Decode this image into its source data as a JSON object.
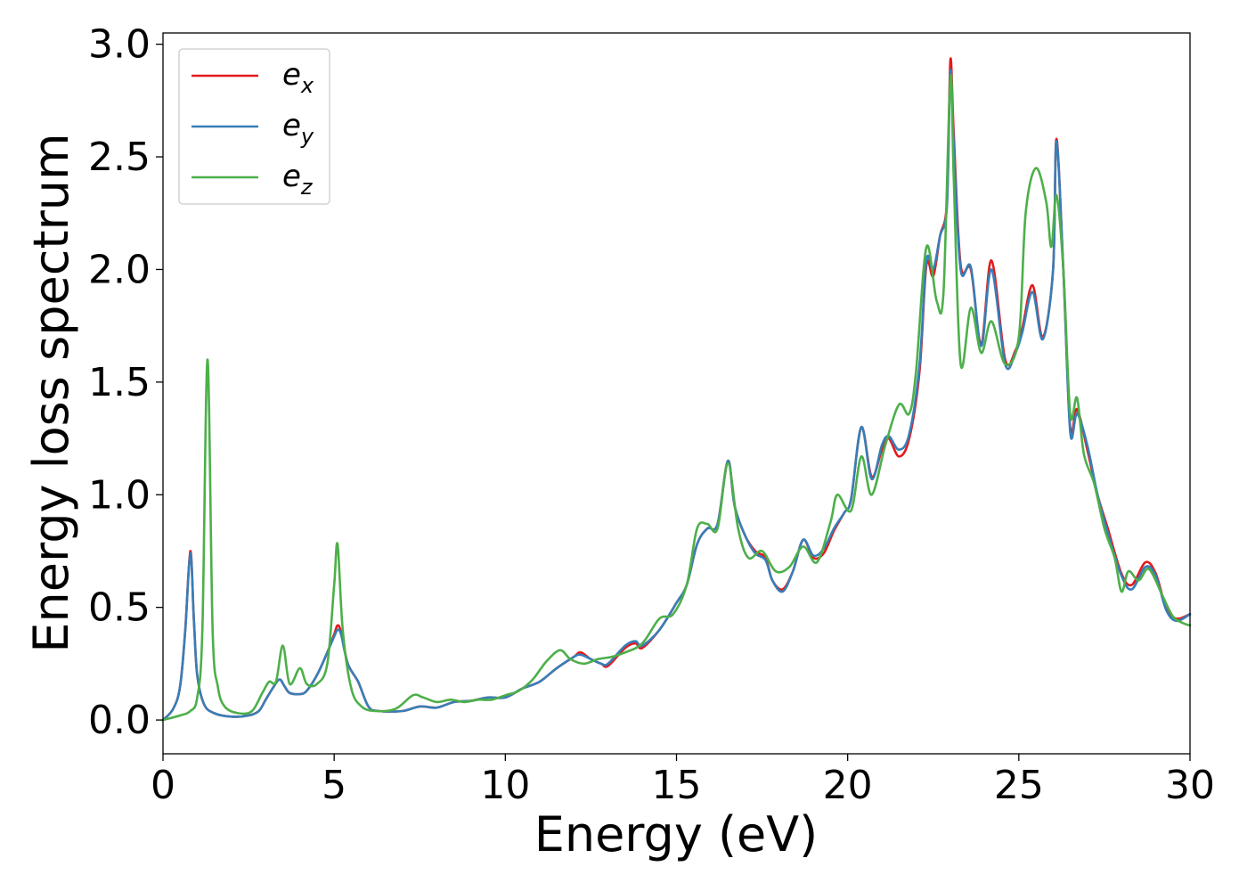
{
  "chart_data": {
    "type": "line",
    "title": "",
    "xlabel": "Energy (eV)",
    "ylabel": "Energy loss spectrum",
    "xlim": [
      0,
      30
    ],
    "ylim": [
      -0.15,
      3.05
    ],
    "xticks": [
      0,
      5,
      10,
      15,
      20,
      25,
      30
    ],
    "xtick_labels": [
      "0",
      "5",
      "10",
      "15",
      "20",
      "25",
      "30"
    ],
    "yticks": [
      0.0,
      0.5,
      1.0,
      1.5,
      2.0,
      2.5,
      3.0
    ],
    "ytick_labels": [
      "0.0",
      "0.5",
      "1.0",
      "1.5",
      "2.0",
      "2.5",
      "3.0"
    ],
    "grid": false,
    "legend_position": "upper-left",
    "series": [
      {
        "name": "e_x",
        "legend_base": "e",
        "legend_sub": "x",
        "color": "#e41a1c",
        "points": [
          [
            0,
            0
          ],
          [
            0.3,
            0.05
          ],
          [
            0.5,
            0.15
          ],
          [
            0.65,
            0.4
          ],
          [
            0.8,
            0.75
          ],
          [
            0.9,
            0.45
          ],
          [
            1.0,
            0.2
          ],
          [
            1.2,
            0.07
          ],
          [
            1.5,
            0.03
          ],
          [
            2.0,
            0.015
          ],
          [
            2.5,
            0.02
          ],
          [
            2.8,
            0.04
          ],
          [
            3.0,
            0.09
          ],
          [
            3.2,
            0.14
          ],
          [
            3.4,
            0.18
          ],
          [
            3.55,
            0.15
          ],
          [
            3.7,
            0.12
          ],
          [
            4.0,
            0.115
          ],
          [
            4.2,
            0.13
          ],
          [
            4.5,
            0.2
          ],
          [
            4.8,
            0.3
          ],
          [
            5.0,
            0.38
          ],
          [
            5.1,
            0.42
          ],
          [
            5.2,
            0.39
          ],
          [
            5.4,
            0.25
          ],
          [
            5.7,
            0.17
          ],
          [
            6.0,
            0.06
          ],
          [
            6.3,
            0.04
          ],
          [
            7.0,
            0.04
          ],
          [
            7.5,
            0.06
          ],
          [
            8.0,
            0.055
          ],
          [
            8.5,
            0.08
          ],
          [
            9.0,
            0.085
          ],
          [
            9.5,
            0.1
          ],
          [
            10.0,
            0.1
          ],
          [
            10.5,
            0.14
          ],
          [
            11.0,
            0.17
          ],
          [
            11.5,
            0.23
          ],
          [
            12.0,
            0.28
          ],
          [
            12.2,
            0.3
          ],
          [
            12.5,
            0.27
          ],
          [
            12.8,
            0.25
          ],
          [
            13.0,
            0.24
          ],
          [
            13.5,
            0.32
          ],
          [
            13.8,
            0.34
          ],
          [
            14.0,
            0.32
          ],
          [
            14.5,
            0.4
          ],
          [
            15.0,
            0.52
          ],
          [
            15.3,
            0.6
          ],
          [
            15.6,
            0.78
          ],
          [
            15.9,
            0.85
          ],
          [
            16.2,
            0.87
          ],
          [
            16.5,
            1.15
          ],
          [
            16.7,
            0.95
          ],
          [
            17.0,
            0.82
          ],
          [
            17.3,
            0.75
          ],
          [
            17.6,
            0.72
          ],
          [
            17.8,
            0.62
          ],
          [
            18.1,
            0.58
          ],
          [
            18.4,
            0.66
          ],
          [
            18.7,
            0.8
          ],
          [
            19.0,
            0.72
          ],
          [
            19.3,
            0.74
          ],
          [
            19.6,
            0.84
          ],
          [
            19.9,
            0.92
          ],
          [
            20.1,
            0.98
          ],
          [
            20.4,
            1.3
          ],
          [
            20.7,
            1.08
          ],
          [
            21.0,
            1.2
          ],
          [
            21.2,
            1.25
          ],
          [
            21.5,
            1.17
          ],
          [
            21.8,
            1.25
          ],
          [
            22.1,
            1.55
          ],
          [
            22.3,
            2.02
          ],
          [
            22.5,
            1.97
          ],
          [
            22.7,
            2.15
          ],
          [
            22.9,
            2.3
          ],
          [
            23.0,
            2.93
          ],
          [
            23.1,
            2.6
          ],
          [
            23.3,
            2.02
          ],
          [
            23.6,
            2.0
          ],
          [
            23.9,
            1.67
          ],
          [
            24.2,
            2.04
          ],
          [
            24.6,
            1.6
          ],
          [
            24.9,
            1.64
          ],
          [
            25.1,
            1.74
          ],
          [
            25.4,
            1.93
          ],
          [
            25.7,
            1.7
          ],
          [
            26.0,
            2.0
          ],
          [
            26.1,
            2.58
          ],
          [
            26.3,
            2.0
          ],
          [
            26.5,
            1.3
          ],
          [
            26.7,
            1.38
          ],
          [
            27.0,
            1.2
          ],
          [
            27.3,
            1.0
          ],
          [
            27.6,
            0.85
          ],
          [
            28.0,
            0.65
          ],
          [
            28.3,
            0.6
          ],
          [
            28.7,
            0.7
          ],
          [
            29.0,
            0.65
          ],
          [
            29.3,
            0.5
          ],
          [
            29.6,
            0.45
          ],
          [
            30.0,
            0.47
          ]
        ]
      },
      {
        "name": "e_y",
        "legend_base": "e",
        "legend_sub": "y",
        "color": "#377eb8",
        "points": [
          [
            0,
            0
          ],
          [
            0.3,
            0.05
          ],
          [
            0.5,
            0.15
          ],
          [
            0.65,
            0.4
          ],
          [
            0.8,
            0.74
          ],
          [
            0.9,
            0.45
          ],
          [
            1.0,
            0.2
          ],
          [
            1.2,
            0.07
          ],
          [
            1.5,
            0.03
          ],
          [
            2.0,
            0.015
          ],
          [
            2.5,
            0.02
          ],
          [
            2.8,
            0.04
          ],
          [
            3.0,
            0.09
          ],
          [
            3.2,
            0.14
          ],
          [
            3.4,
            0.18
          ],
          [
            3.55,
            0.15
          ],
          [
            3.7,
            0.12
          ],
          [
            4.0,
            0.115
          ],
          [
            4.2,
            0.13
          ],
          [
            4.5,
            0.2
          ],
          [
            4.8,
            0.3
          ],
          [
            5.0,
            0.37
          ],
          [
            5.1,
            0.4
          ],
          [
            5.2,
            0.38
          ],
          [
            5.4,
            0.25
          ],
          [
            5.7,
            0.17
          ],
          [
            6.0,
            0.06
          ],
          [
            6.3,
            0.04
          ],
          [
            7.0,
            0.04
          ],
          [
            7.5,
            0.06
          ],
          [
            8.0,
            0.055
          ],
          [
            8.5,
            0.08
          ],
          [
            9.0,
            0.085
          ],
          [
            9.5,
            0.1
          ],
          [
            10.0,
            0.1
          ],
          [
            10.5,
            0.14
          ],
          [
            11.0,
            0.17
          ],
          [
            11.5,
            0.23
          ],
          [
            12.0,
            0.28
          ],
          [
            12.2,
            0.29
          ],
          [
            12.5,
            0.27
          ],
          [
            12.8,
            0.25
          ],
          [
            13.0,
            0.25
          ],
          [
            13.5,
            0.33
          ],
          [
            13.8,
            0.35
          ],
          [
            14.0,
            0.33
          ],
          [
            14.5,
            0.4
          ],
          [
            15.0,
            0.52
          ],
          [
            15.3,
            0.6
          ],
          [
            15.6,
            0.78
          ],
          [
            15.9,
            0.85
          ],
          [
            16.2,
            0.87
          ],
          [
            16.5,
            1.15
          ],
          [
            16.7,
            0.95
          ],
          [
            17.0,
            0.82
          ],
          [
            17.3,
            0.74
          ],
          [
            17.6,
            0.71
          ],
          [
            17.8,
            0.62
          ],
          [
            18.1,
            0.57
          ],
          [
            18.4,
            0.66
          ],
          [
            18.7,
            0.8
          ],
          [
            19.0,
            0.73
          ],
          [
            19.3,
            0.76
          ],
          [
            19.6,
            0.85
          ],
          [
            19.9,
            0.92
          ],
          [
            20.1,
            0.98
          ],
          [
            20.4,
            1.3
          ],
          [
            20.7,
            1.07
          ],
          [
            21.0,
            1.22
          ],
          [
            21.2,
            1.26
          ],
          [
            21.5,
            1.2
          ],
          [
            21.8,
            1.27
          ],
          [
            22.1,
            1.58
          ],
          [
            22.3,
            2.04
          ],
          [
            22.5,
            2.0
          ],
          [
            22.7,
            2.15
          ],
          [
            22.9,
            2.28
          ],
          [
            23.0,
            2.88
          ],
          [
            23.1,
            2.55
          ],
          [
            23.3,
            2.0
          ],
          [
            23.6,
            2.01
          ],
          [
            23.9,
            1.66
          ],
          [
            24.2,
            2.0
          ],
          [
            24.6,
            1.58
          ],
          [
            24.9,
            1.63
          ],
          [
            25.1,
            1.72
          ],
          [
            25.4,
            1.9
          ],
          [
            25.7,
            1.69
          ],
          [
            26.0,
            2.0
          ],
          [
            26.1,
            2.57
          ],
          [
            26.3,
            2.0
          ],
          [
            26.5,
            1.28
          ],
          [
            26.7,
            1.36
          ],
          [
            27.0,
            1.22
          ],
          [
            27.3,
            1.0
          ],
          [
            27.6,
            0.83
          ],
          [
            28.0,
            0.64
          ],
          [
            28.3,
            0.58
          ],
          [
            28.7,
            0.68
          ],
          [
            29.0,
            0.64
          ],
          [
            29.3,
            0.49
          ],
          [
            29.6,
            0.44
          ],
          [
            30.0,
            0.47
          ]
        ]
      },
      {
        "name": "e_z",
        "legend_base": "e",
        "legend_sub": "z",
        "color": "#4daf4a",
        "points": [
          [
            0,
            0
          ],
          [
            0.5,
            0.02
          ],
          [
            0.8,
            0.04
          ],
          [
            1.0,
            0.1
          ],
          [
            1.15,
            0.4
          ],
          [
            1.3,
            1.6
          ],
          [
            1.45,
            0.4
          ],
          [
            1.6,
            0.15
          ],
          [
            1.8,
            0.06
          ],
          [
            2.2,
            0.03
          ],
          [
            2.6,
            0.04
          ],
          [
            2.9,
            0.12
          ],
          [
            3.1,
            0.17
          ],
          [
            3.3,
            0.17
          ],
          [
            3.5,
            0.33
          ],
          [
            3.7,
            0.16
          ],
          [
            4.0,
            0.23
          ],
          [
            4.2,
            0.16
          ],
          [
            4.5,
            0.16
          ],
          [
            4.8,
            0.25
          ],
          [
            5.0,
            0.6
          ],
          [
            5.1,
            0.78
          ],
          [
            5.25,
            0.4
          ],
          [
            5.5,
            0.14
          ],
          [
            5.8,
            0.06
          ],
          [
            6.2,
            0.04
          ],
          [
            6.8,
            0.05
          ],
          [
            7.3,
            0.11
          ],
          [
            7.6,
            0.1
          ],
          [
            8.0,
            0.08
          ],
          [
            8.4,
            0.09
          ],
          [
            8.8,
            0.08
          ],
          [
            9.2,
            0.09
          ],
          [
            9.6,
            0.09
          ],
          [
            10.0,
            0.11
          ],
          [
            10.4,
            0.13
          ],
          [
            10.8,
            0.18
          ],
          [
            11.2,
            0.26
          ],
          [
            11.6,
            0.31
          ],
          [
            11.9,
            0.27
          ],
          [
            12.3,
            0.25
          ],
          [
            12.7,
            0.27
          ],
          [
            13.1,
            0.28
          ],
          [
            13.5,
            0.3
          ],
          [
            14.0,
            0.34
          ],
          [
            14.5,
            0.45
          ],
          [
            14.9,
            0.47
          ],
          [
            15.3,
            0.6
          ],
          [
            15.6,
            0.85
          ],
          [
            15.9,
            0.87
          ],
          [
            16.2,
            0.85
          ],
          [
            16.5,
            1.14
          ],
          [
            16.8,
            0.85
          ],
          [
            17.1,
            0.72
          ],
          [
            17.5,
            0.75
          ],
          [
            17.9,
            0.66
          ],
          [
            18.3,
            0.68
          ],
          [
            18.7,
            0.77
          ],
          [
            19.1,
            0.7
          ],
          [
            19.5,
            0.88
          ],
          [
            19.7,
            1.0
          ],
          [
            20.1,
            0.93
          ],
          [
            20.4,
            1.17
          ],
          [
            20.7,
            1.0
          ],
          [
            21.1,
            1.22
          ],
          [
            21.5,
            1.4
          ],
          [
            21.8,
            1.36
          ],
          [
            22.0,
            1.55
          ],
          [
            22.3,
            2.1
          ],
          [
            22.6,
            1.86
          ],
          [
            22.8,
            1.9
          ],
          [
            23.0,
            2.85
          ],
          [
            23.1,
            2.4
          ],
          [
            23.3,
            1.58
          ],
          [
            23.6,
            1.83
          ],
          [
            23.9,
            1.63
          ],
          [
            24.2,
            1.77
          ],
          [
            24.6,
            1.58
          ],
          [
            25.0,
            1.7
          ],
          [
            25.2,
            2.25
          ],
          [
            25.5,
            2.45
          ],
          [
            25.8,
            2.3
          ],
          [
            25.95,
            2.1
          ],
          [
            26.1,
            2.33
          ],
          [
            26.3,
            2.0
          ],
          [
            26.5,
            1.36
          ],
          [
            26.7,
            1.43
          ],
          [
            26.9,
            1.18
          ],
          [
            27.2,
            1.05
          ],
          [
            27.5,
            0.85
          ],
          [
            27.8,
            0.72
          ],
          [
            28.0,
            0.57
          ],
          [
            28.2,
            0.66
          ],
          [
            28.5,
            0.62
          ],
          [
            28.8,
            0.67
          ],
          [
            29.2,
            0.55
          ],
          [
            29.5,
            0.46
          ],
          [
            29.8,
            0.43
          ],
          [
            30.0,
            0.42
          ]
        ]
      }
    ]
  }
}
